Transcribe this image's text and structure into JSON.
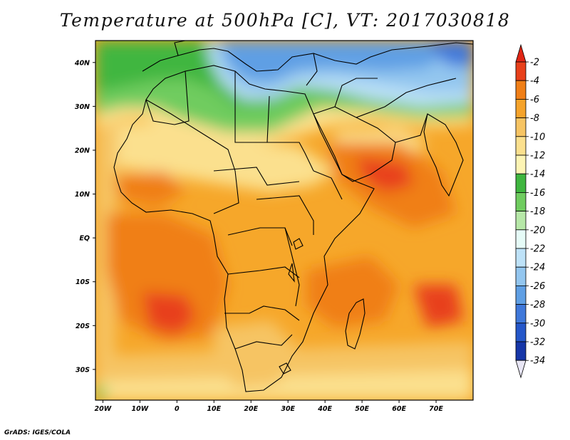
{
  "title": "Temperature at 500hPa [C], VT: 2017030818",
  "credit": "GrADS: IGES/COLA",
  "map": {
    "field": "Temperature at 500hPa",
    "units": "C",
    "valid_time": "2017030818",
    "lon_range": [
      -22,
      80
    ],
    "lat_range": [
      -37,
      45
    ],
    "lon_ticks": [
      {
        "value": -20,
        "label": "20W"
      },
      {
        "value": -10,
        "label": "10W"
      },
      {
        "value": 0,
        "label": "0"
      },
      {
        "value": 10,
        "label": "10E"
      },
      {
        "value": 20,
        "label": "20E"
      },
      {
        "value": 30,
        "label": "30E"
      },
      {
        "value": 40,
        "label": "40E"
      },
      {
        "value": 50,
        "label": "50E"
      },
      {
        "value": 60,
        "label": "60E"
      },
      {
        "value": 70,
        "label": "70E"
      }
    ],
    "lat_ticks": [
      {
        "value": 40,
        "label": "40N"
      },
      {
        "value": 30,
        "label": "30N"
      },
      {
        "value": 20,
        "label": "20N"
      },
      {
        "value": 10,
        "label": "10N"
      },
      {
        "value": 0,
        "label": "EQ"
      },
      {
        "value": -10,
        "label": "10S"
      },
      {
        "value": -20,
        "label": "20S"
      },
      {
        "value": -30,
        "label": "30S"
      }
    ]
  },
  "colorbar": {
    "levels": [
      "-2",
      "-4",
      "-6",
      "-8",
      "-10",
      "-12",
      "-14",
      "-16",
      "-18",
      "-20",
      "-22",
      "-24",
      "-26",
      "-28",
      "-30",
      "-32",
      "-34"
    ],
    "colors": [
      "#e8401a",
      "#f07f17",
      "#f5a32b",
      "#f6c463",
      "#fbe08e",
      "#fdf4b4",
      "#3fb63f",
      "#6fcc5f",
      "#b7e8a8",
      "#e6fbf7",
      "#bee2f8",
      "#93c6ef",
      "#5f9fe4",
      "#3f78da",
      "#2557c9",
      "#1636a8",
      "#0d1a78"
    ],
    "top_color": "#e02515",
    "bottom_color": "#e8e6f5"
  }
}
